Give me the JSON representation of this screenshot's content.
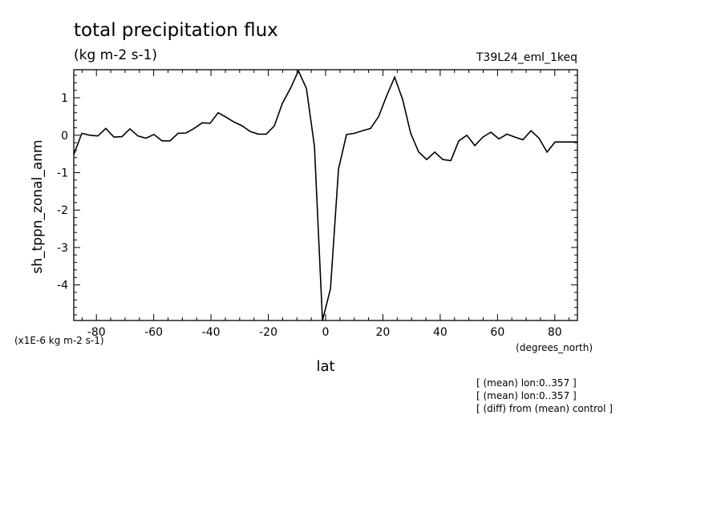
{
  "chart_data": {
    "type": "line",
    "title": "total precipitation flux",
    "units_label": "(kg m-2 s-1)",
    "run_id": "T39L24_eml_1keq",
    "xlabel": "lat",
    "xunits": "(degrees_north)",
    "ylabel": "sh_tppn_zonal_anm",
    "yscale_label": "(x1E-6 kg m-2 s-1)",
    "xlim": [
      -87.9,
      87.9
    ],
    "ylim": [
      -4.95,
      1.75
    ],
    "xticks": [
      -80,
      -60,
      -40,
      -20,
      0,
      20,
      40,
      60,
      80
    ],
    "yticks": [
      1,
      0,
      -1,
      -2,
      -3,
      -4
    ],
    "xtick_labels": [
      "-80",
      "-60",
      "-40",
      "-20",
      "0",
      "20",
      "40",
      "60",
      "80"
    ],
    "ytick_labels": [
      "1",
      "0",
      "-1",
      "-2",
      "-3",
      "-4"
    ],
    "notes": [
      "[ (mean) lon:0..357 ]",
      "[ (mean) lon:0..357 ]",
      "[ (diff) from (mean) control ]"
    ],
    "series": [
      {
        "x": [
          -87.9,
          -85.1,
          -82.3,
          -79.5,
          -76.7,
          -73.9,
          -71.1,
          -68.3,
          -65.5,
          -62.7,
          -59.9,
          -57.1,
          -54.3,
          -51.5,
          -48.7,
          -45.9,
          -43.1,
          -40.3,
          -37.5,
          -34.7,
          -31.9,
          -29.1,
          -26.3,
          -23.5,
          -20.7,
          -17.9,
          -15.1,
          -12.3,
          -9.5,
          -6.7,
          -3.9,
          -1.1,
          1.7,
          4.5,
          7.3,
          10.1,
          12.9,
          15.7,
          18.5,
          21.3,
          24.1,
          26.9,
          29.7,
          32.5,
          35.3,
          38.1,
          40.9,
          43.7,
          46.5,
          49.3,
          52.1,
          54.9,
          57.7,
          60.5,
          63.3,
          66.1,
          68.9,
          71.7,
          74.5,
          77.3,
          80.1,
          82.9,
          85.7,
          87.9
        ],
        "y": [
          -0.52,
          0.05,
          0.0,
          -0.02,
          0.18,
          -0.05,
          -0.04,
          0.17,
          -0.02,
          -0.08,
          0.02,
          -0.15,
          -0.15,
          0.05,
          0.06,
          0.18,
          0.33,
          0.32,
          0.6,
          0.48,
          0.35,
          0.25,
          0.1,
          0.03,
          0.03,
          0.25,
          0.85,
          1.25,
          1.72,
          1.25,
          -0.3,
          -4.95,
          -4.1,
          -0.9,
          0.02,
          0.05,
          0.12,
          0.18,
          0.5,
          1.05,
          1.55,
          0.95,
          0.05,
          -0.45,
          -0.65,
          -0.45,
          -0.65,
          -0.68,
          -0.15,
          0.0,
          -0.28,
          -0.05,
          0.08,
          -0.1,
          0.03,
          -0.05,
          -0.12,
          0.12,
          -0.08,
          -0.45,
          -0.18,
          -0.18,
          -0.18,
          -0.18
        ]
      }
    ]
  }
}
